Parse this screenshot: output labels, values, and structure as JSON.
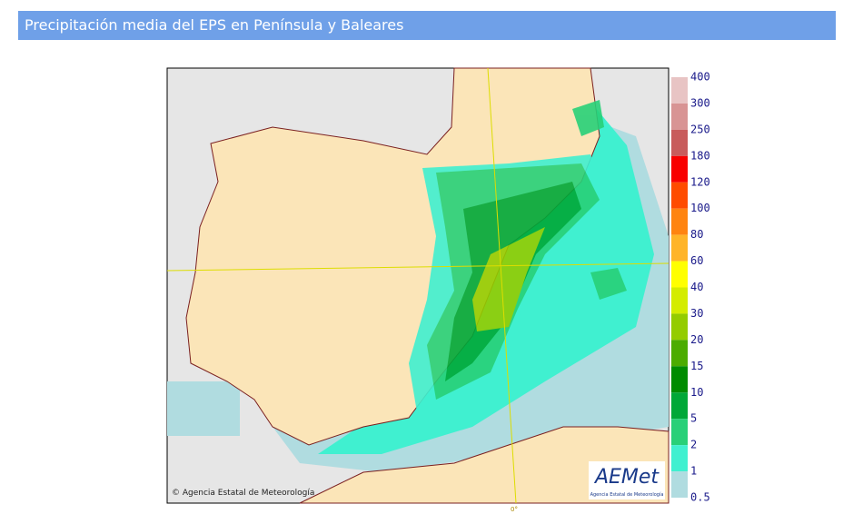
{
  "header": {
    "title": "Precipitación media del EPS en Península y Baleares"
  },
  "map": {
    "copyright": "© Agencia Estatal de Meteorología",
    "logo_text": "AEMet",
    "logo_subtitle": "Agencia Estatal de Meteorología",
    "meridian_label": "0°"
  },
  "legend": {
    "labels": [
      400,
      300,
      250,
      180,
      120,
      100,
      80,
      60,
      40,
      30,
      20,
      15,
      10,
      5,
      2,
      1,
      0.5
    ],
    "colors": [
      "#e8c4c4",
      "#d89494",
      "#c85c5c",
      "#f80000",
      "#ff4c00",
      "#ff8410",
      "#ffb428",
      "#ffff00",
      "#d4ec00",
      "#94cc00",
      "#4cac00",
      "#008c00",
      "#00a838",
      "#28d078",
      "#40f0d0",
      "#b0dce0"
    ]
  }
}
